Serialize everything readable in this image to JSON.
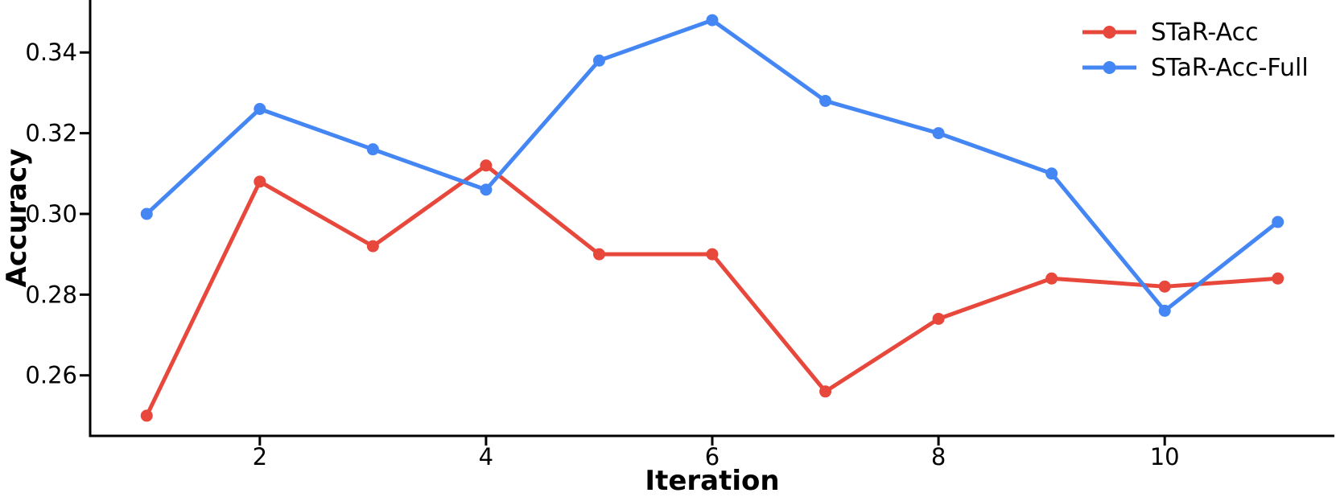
{
  "figure": {
    "background": "#ffffff",
    "axis_color": "#000000"
  },
  "chart_data": {
    "type": "line",
    "title": "",
    "xlabel": "Iteration",
    "ylabel": "Accuracy",
    "x": [
      1,
      2,
      3,
      4,
      5,
      6,
      7,
      8,
      9,
      10,
      11
    ],
    "series": [
      {
        "name": "STaR-Acc",
        "color": "#e8483c",
        "values": [
          0.25,
          0.308,
          0.292,
          0.312,
          0.29,
          0.29,
          0.256,
          0.274,
          0.284,
          0.282,
          0.284
        ]
      },
      {
        "name": "STaR-Acc-Full",
        "color": "#4487f4",
        "values": [
          0.3,
          0.326,
          0.316,
          0.306,
          0.338,
          0.348,
          0.328,
          0.32,
          0.31,
          0.276,
          0.298
        ]
      }
    ],
    "xticks": [
      2,
      4,
      6,
      8,
      10
    ],
    "xtick_labels": [
      "2",
      "4",
      "6",
      "8",
      "10"
    ],
    "yticks": [
      0.26,
      0.28,
      0.3,
      0.32,
      0.34
    ],
    "ytick_labels": [
      "0.26",
      "0.28",
      "0.30",
      "0.32",
      "0.34"
    ],
    "xlim": [
      0.5,
      11.5
    ],
    "ylim": [
      0.245,
      0.353
    ],
    "grid": false,
    "legend_position": "upper right",
    "marker": "circle",
    "spines": [
      "left",
      "bottom"
    ]
  }
}
